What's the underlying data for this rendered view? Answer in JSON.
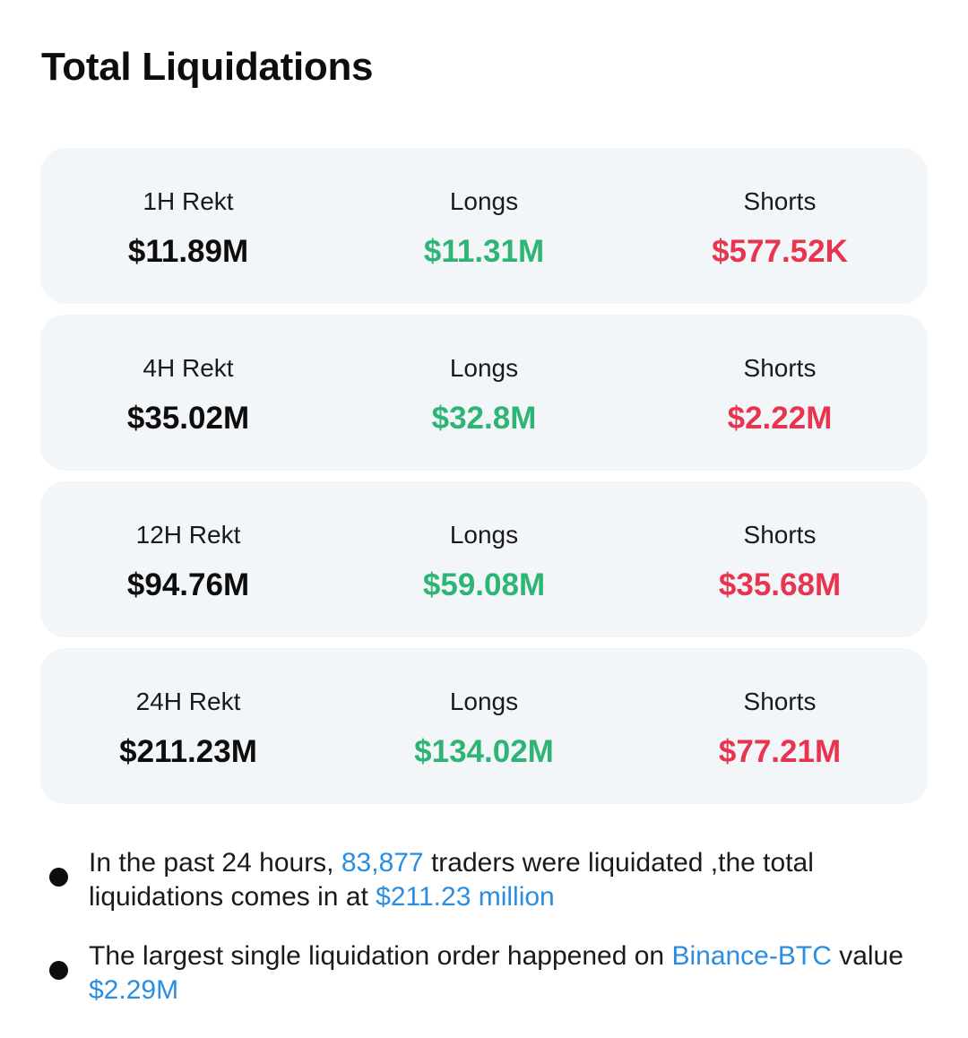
{
  "title": "Total Liquidations",
  "colors": {
    "total": "#0d0d0d",
    "longs": "#2eb575",
    "shorts": "#e8344e",
    "link": "#2b8de0",
    "card_bg": "#f3f6f9"
  },
  "rows": [
    {
      "period_label": "1H Rekt",
      "total": "$11.89M",
      "longs_label": "Longs",
      "longs": "$11.31M",
      "shorts_label": "Shorts",
      "shorts": "$577.52K"
    },
    {
      "period_label": "4H Rekt",
      "total": "$35.02M",
      "longs_label": "Longs",
      "longs": "$32.8M",
      "shorts_label": "Shorts",
      "shorts": "$2.22M"
    },
    {
      "period_label": "12H Rekt",
      "total": "$94.76M",
      "longs_label": "Longs",
      "longs": "$59.08M",
      "shorts_label": "Shorts",
      "shorts": "$35.68M"
    },
    {
      "period_label": "24H Rekt",
      "total": "$211.23M",
      "longs_label": "Longs",
      "longs": "$134.02M",
      "shorts_label": "Shorts",
      "shorts": "$77.21M"
    }
  ],
  "summary": {
    "line1": {
      "prefix": "In the past 24 hours, ",
      "traders_count": "83,877",
      "middle": " traders were liquidated ,the total liquidations comes in at ",
      "total_amount": "$211.23 million"
    },
    "line2": {
      "prefix": "The largest single liquidation order happened on ",
      "exchange_pair": "Binance-BTC",
      "middle": " value ",
      "amount": "$2.29M"
    }
  }
}
